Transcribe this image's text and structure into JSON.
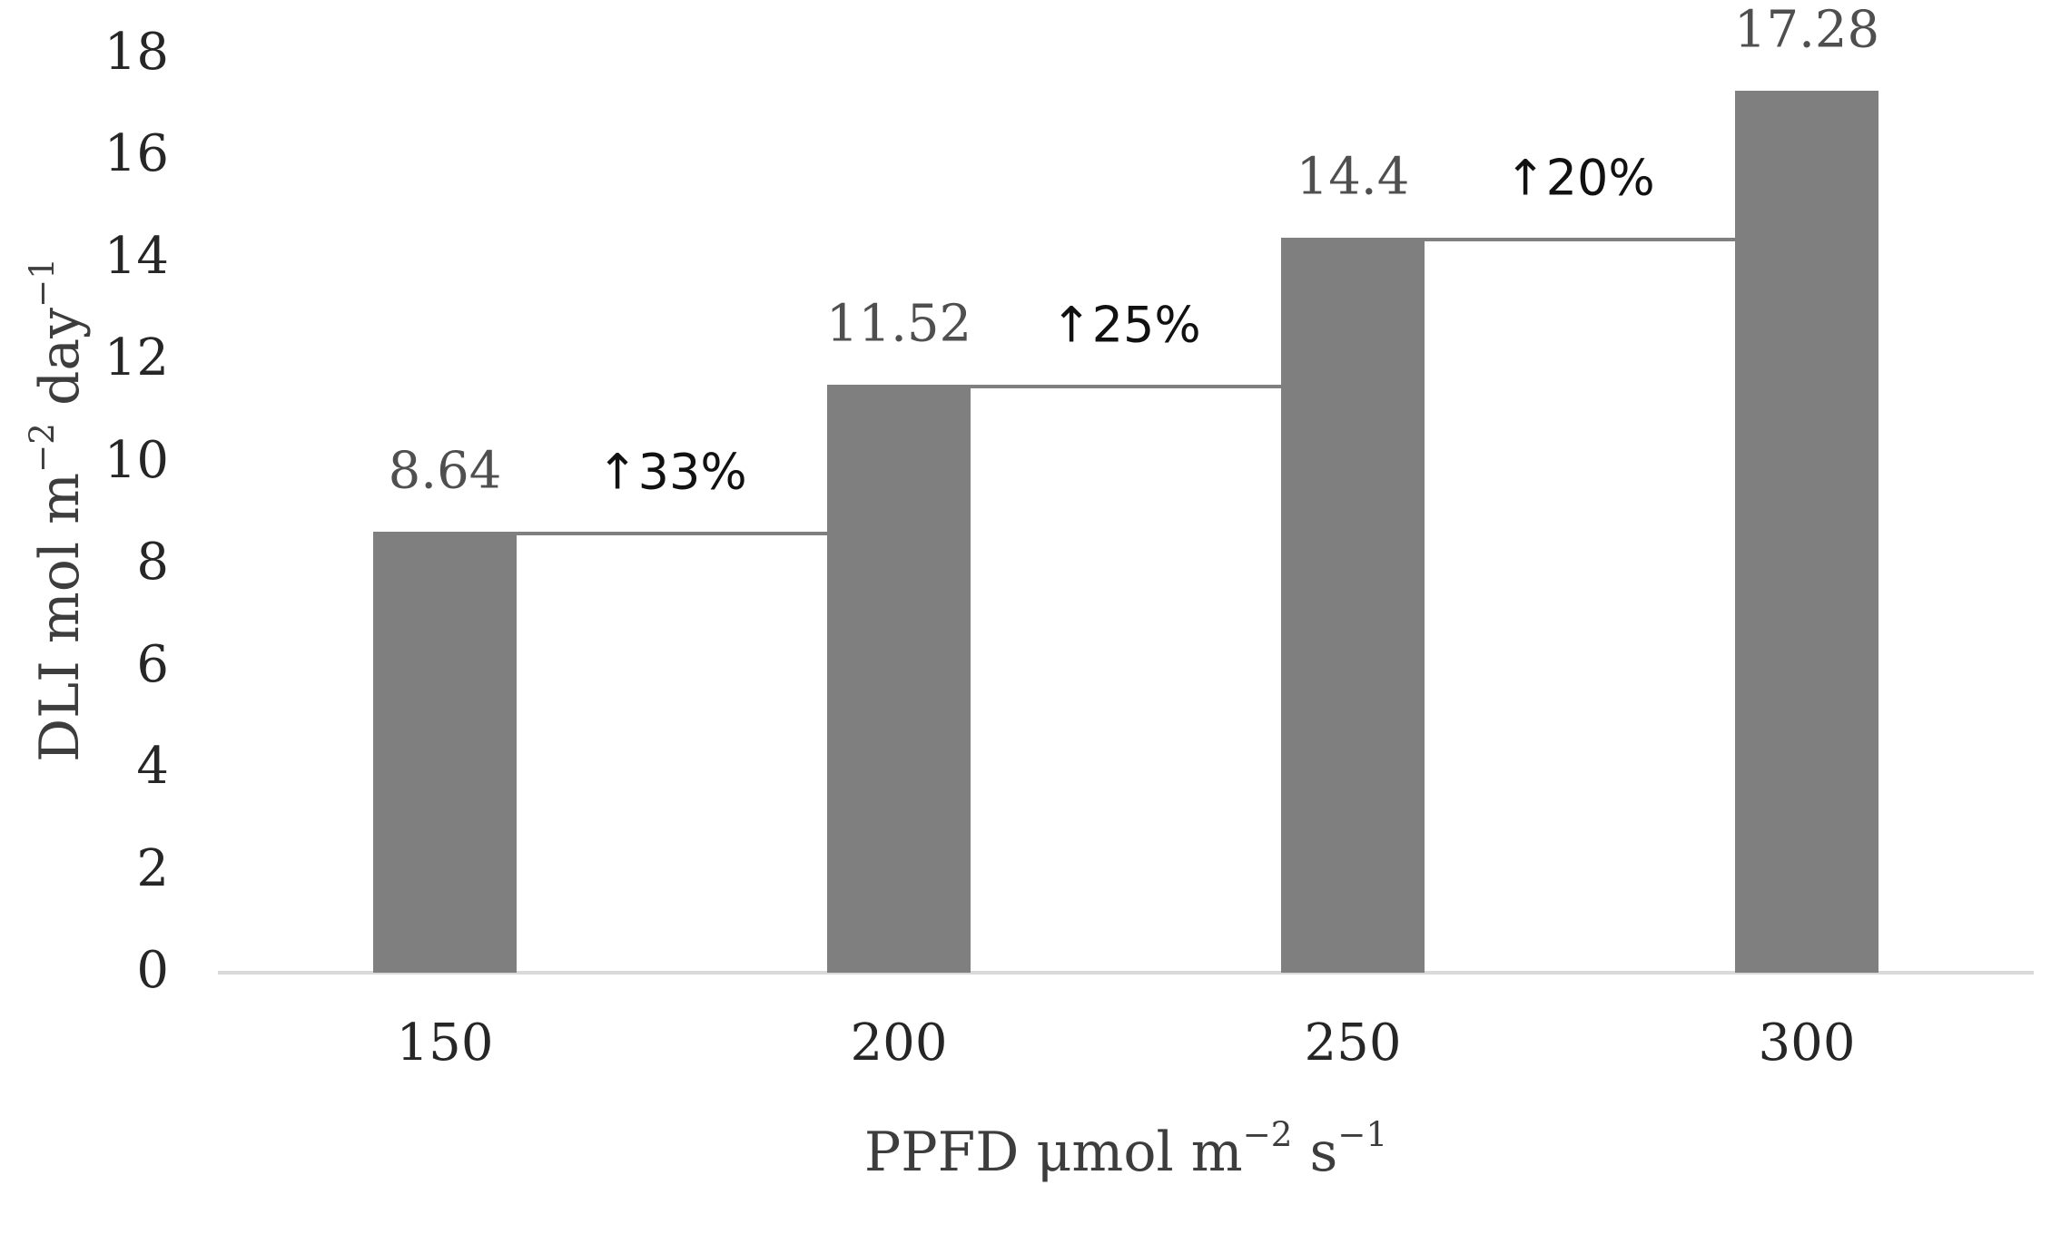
{
  "chart_data": {
    "type": "bar",
    "title": "",
    "categories": [
      "150",
      "200",
      "250",
      "300"
    ],
    "values": [
      8.64,
      11.52,
      14.4,
      17.28
    ],
    "value_labels": [
      "8.64",
      "11.52",
      "14.4",
      "17.28"
    ],
    "increase_annotations": [
      "↑33%",
      "↑25%",
      "↑20%"
    ],
    "yticks": [
      "0",
      "2",
      "4",
      "6",
      "8",
      "10",
      "12",
      "14",
      "16",
      "18"
    ],
    "ylim": [
      0,
      18
    ],
    "grid": "off",
    "legend": "none",
    "xlabel": "PPFD μmol m⁻² s⁻¹",
    "ylabel": "DLI mol m⁻² day⁻¹",
    "xlabel_parts": {
      "a": "PPFD μmol m",
      "sup1": "−2",
      "b": " s",
      "sup2": "−1"
    },
    "ylabel_parts": {
      "a": "DLI mol m",
      "sup1": "−2",
      "b": " day",
      "sup2": "−1"
    },
    "colors": {
      "bar_fill": "#7f7f7f",
      "connector_line": "#7f7f7f",
      "axis_line": "#d9d9d9",
      "tick_text": "#262626",
      "value_text": "#4f4f4f",
      "annotation_text": "#111111",
      "axis_title_text": "#3d3d3d",
      "background": "#ffffff"
    }
  }
}
